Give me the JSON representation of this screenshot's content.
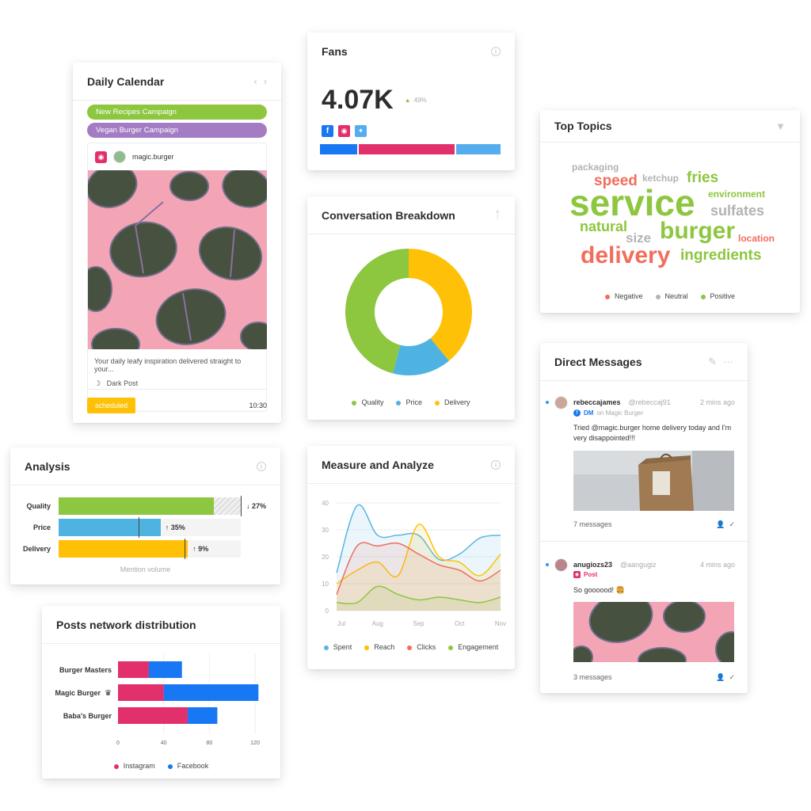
{
  "calendar": {
    "title": "Daily Calendar",
    "campaigns": [
      {
        "label": "New Recipes Campaign",
        "color": "#8dc63f"
      },
      {
        "label": "Vegan Burger Campaign",
        "color": "#a37cc4"
      }
    ],
    "post": {
      "network_icon": "instagram-icon",
      "account": "magic.burger",
      "caption": "Your daily leafy inspiration delivered straight to your...",
      "type": "Dark Post",
      "status": "scheduled",
      "time": "10:30"
    }
  },
  "fans": {
    "title": "Fans",
    "total": "4.07K",
    "change": "49%",
    "networks": [
      "facebook-icon",
      "instagram-icon",
      "twitter-icon"
    ],
    "split": [
      {
        "network": "Facebook",
        "share": 0.21,
        "color": "#1877f2"
      },
      {
        "network": "Instagram",
        "share": 0.54,
        "color": "#e1306c"
      },
      {
        "network": "Twitter",
        "share": 0.25,
        "color": "#55acee"
      }
    ]
  },
  "conversation": {
    "title": "Conversation Breakdown",
    "legend": [
      "Quality",
      "Price",
      "Delivery"
    ]
  },
  "measure": {
    "title": "Measure and Analyze",
    "legend": [
      "Spent",
      "Reach",
      "Clicks",
      "Engagement"
    ]
  },
  "topics": {
    "title": "Top Topics",
    "legend": [
      "Negative",
      "Neutral",
      "Positive"
    ],
    "colors": {
      "negative": "#f26d5b",
      "neutral": "#b3b3b3",
      "positive": "#8dc63f"
    },
    "words": [
      {
        "text": "packaging",
        "sentiment": "neutral"
      },
      {
        "text": "speed",
        "sentiment": "negative"
      },
      {
        "text": "ketchup",
        "sentiment": "neutral"
      },
      {
        "text": "fries",
        "sentiment": "positive"
      },
      {
        "text": "service",
        "sentiment": "positive"
      },
      {
        "text": "environment",
        "sentiment": "positive"
      },
      {
        "text": "sulfates",
        "sentiment": "neutral"
      },
      {
        "text": "natural",
        "sentiment": "positive"
      },
      {
        "text": "size",
        "sentiment": "neutral"
      },
      {
        "text": "burger",
        "sentiment": "positive"
      },
      {
        "text": "location",
        "sentiment": "negative"
      },
      {
        "text": "delivery",
        "sentiment": "negative"
      },
      {
        "text": "ingredients",
        "sentiment": "positive"
      }
    ]
  },
  "dm": {
    "title": "Direct Messages",
    "messages": [
      {
        "name": "rebeccajames",
        "handle": "@rebeccaj91",
        "time": "2 mins ago",
        "source_type": "DM",
        "source_rest": "on Magic Burger",
        "text": "Tried @magic.burger home delivery today and I'm very disappointed!!!",
        "count": "7 messages"
      },
      {
        "name": "anugiozs23",
        "handle": "@aangugiz",
        "time": "4 mins ago",
        "source_type": "Post",
        "source_rest": "",
        "text": "So goooood! 🍔",
        "count": "3 messages"
      }
    ]
  },
  "analysis": {
    "title": "Analysis",
    "footer": "Mention volume",
    "rows": [
      {
        "label": "Quality",
        "delta": "↓ 27%",
        "color": "#8dc63f",
        "fill": 0.85,
        "marker": 1.0
      },
      {
        "label": "Price",
        "delta": "↑ 35%",
        "color": "#4eb3e0",
        "fill": 0.56,
        "marker": 0.44
      },
      {
        "label": "Delivery",
        "delta": "↑ 9%",
        "color": "#ffc107",
        "fill": 0.71,
        "marker": 0.69
      }
    ]
  },
  "posts_network": {
    "title": "Posts network distribution",
    "legend": [
      "Instagram",
      "Facebook"
    ]
  },
  "chart_data": [
    {
      "type": "pie",
      "title": "Conversation Breakdown",
      "categories": [
        "Quality",
        "Price",
        "Delivery"
      ],
      "values": [
        46,
        15,
        39
      ],
      "colors": [
        "#8dc63f",
        "#4eb3e0",
        "#ffc107"
      ]
    },
    {
      "type": "area",
      "title": "Measure and Analyze",
      "categories": [
        "Jul",
        "Aug",
        "Sep",
        "Oct",
        "Nov"
      ],
      "x": [
        0,
        0.5,
        1,
        1.5,
        2,
        2.5,
        3,
        3.5,
        4
      ],
      "ylim": [
        0,
        40
      ],
      "yticks": [
        0,
        10,
        20,
        30,
        40
      ],
      "grid": true,
      "series": [
        {
          "name": "Spent",
          "color": "#5ab4e5",
          "values": [
            14,
            39,
            28,
            28,
            28,
            19,
            21,
            27,
            28
          ]
        },
        {
          "name": "Reach",
          "color": "#ffc107",
          "values": [
            10,
            15,
            18,
            13,
            32,
            20,
            18,
            13,
            21
          ]
        },
        {
          "name": "Clicks",
          "color": "#f26d5b",
          "values": [
            6,
            24,
            24,
            25,
            21,
            17,
            15,
            11,
            15
          ]
        },
        {
          "name": "Engagement",
          "color": "#8dc63f",
          "values": [
            3,
            3,
            9,
            6,
            4,
            5,
            4,
            3,
            5
          ]
        }
      ]
    },
    {
      "type": "bar",
      "orientation": "horizontal",
      "stacked": true,
      "title": "Posts network distribution",
      "categories": [
        "Burger Masters",
        "Magic Burger",
        "Baba's Burger"
      ],
      "xlim": [
        0,
        120
      ],
      "xticks": [
        0,
        40,
        80,
        120
      ],
      "grid": true,
      "series": [
        {
          "name": "Instagram",
          "color": "#e1306c",
          "values": [
            27,
            40,
            61
          ]
        },
        {
          "name": "Facebook",
          "color": "#1877f2",
          "values": [
            29,
            83,
            26
          ]
        }
      ]
    }
  ]
}
